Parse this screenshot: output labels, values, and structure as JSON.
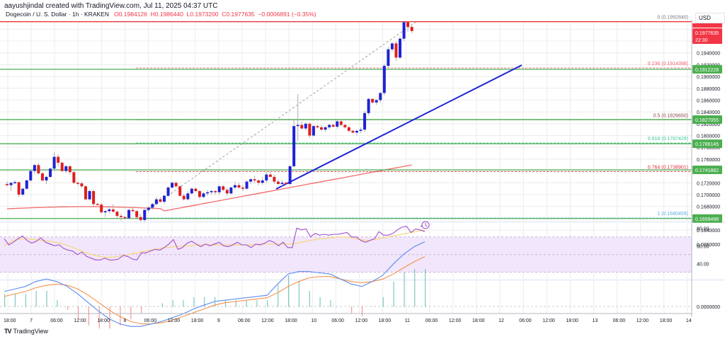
{
  "header": {
    "credit": "aayushjindal created with TradingView.com, Jul 11, 2025 04:37 UTC",
    "symbol": "Dogecoin / U. S. Dollar · 1h · KRAKEN",
    "open": "O0.1984126",
    "high": "H0.1986440",
    "low": "L0.1973200",
    "close": "C0.1977635",
    "change": "−0.0006891 (−0.35%)"
  },
  "currency_button": "USD",
  "branding": {
    "logo": "TV",
    "name": "TradingView"
  },
  "colors": {
    "up": "#1e22d4",
    "down": "#e01e1e",
    "fib_line": "#4caf50",
    "trendline": "#1e22d4",
    "ma": "#f05050",
    "rsi": "#a050c8",
    "rsi_ma": "#f5d77a",
    "rsi_band": "#f1e6fb",
    "macd": "#5b8cf0",
    "signal": "#f5924a",
    "price_tag": "#f23645",
    "level_tag": "#4caf50"
  },
  "chart_data": {
    "type": "candlestick",
    "title": "Dogecoin / U. S. Dollar · 1h · KRAKEN",
    "price_axis": {
      "ticks": [
        "0.1960000",
        "0.1940000",
        "0.1920000",
        "0.1900000",
        "0.1880000",
        "0.1860000",
        "0.1840000",
        "0.1820000",
        "0.1800000",
        "0.1780000",
        "0.1760000",
        "0.1720000",
        "0.1700000",
        "0.1680000",
        "0.1640000"
      ],
      "range": [
        0.163,
        0.2002
      ]
    },
    "time_axis": [
      "18:00",
      "7",
      "06:00",
      "12:00",
      "18:00",
      "8",
      "06:00",
      "12:00",
      "18:00",
      "9",
      "06:00",
      "12:00",
      "18:00",
      "10",
      "06:00",
      "12:00",
      "18:00",
      "11",
      "06:00",
      "12:00",
      "18:00",
      "12",
      "06:00",
      "12:00",
      "18:00",
      "13",
      "06:00",
      "12:00",
      "18:00",
      "14"
    ],
    "last_price": {
      "value": "0.1977635",
      "countdown": "22:30"
    },
    "level_tags": [
      "0.1912228",
      "0.1827055",
      "0.1786145",
      "0.1741882",
      "0.1659498"
    ],
    "fibonacci": [
      {
        "ratio": "0",
        "price": "0.1992840",
        "label": "0 (0.1992840)",
        "color": "#787b86"
      },
      {
        "ratio": "0.236",
        "price": "0.1914398",
        "label": "0.236 (0.1914398)",
        "color": "#f06070"
      },
      {
        "ratio": "0.5",
        "price": "0.1826650",
        "label": "0.5 (0.1826650)",
        "color": "#8a4a4a"
      },
      {
        "ratio": "0.618",
        "price": "0.1787429",
        "label": "0.618 (0.1787429)",
        "color": "#3ec99a"
      },
      {
        "ratio": "0.764",
        "price": "0.1738901",
        "label": "0.764 (0.1738901)",
        "color": "#e0303a"
      },
      {
        "ratio": "1",
        "price": "0.1660459",
        "label": "1 (0.1660459)",
        "color": "#5aaee0"
      }
    ],
    "horizontal_lines": [
      0.1912228,
      0.1827055,
      0.1786145,
      0.1741882,
      0.1659498
    ],
    "trendline": {
      "from": [
        390,
        267
      ],
      "to": [
        737,
        92
      ]
    },
    "candles": [
      [
        0.1718,
        0.1722,
        0.1714,
        0.1716
      ],
      [
        0.1716,
        0.172,
        0.1706,
        0.172
      ],
      [
        0.172,
        0.1724,
        0.1718,
        0.1721
      ],
      [
        0.1721,
        0.1722,
        0.1696,
        0.17
      ],
      [
        0.17,
        0.1712,
        0.1698,
        0.171
      ],
      [
        0.171,
        0.1726,
        0.1708,
        0.1724
      ],
      [
        0.1724,
        0.1742,
        0.1722,
        0.174
      ],
      [
        0.174,
        0.1752,
        0.1735,
        0.175
      ],
      [
        0.175,
        0.1754,
        0.1734,
        0.1736
      ],
      [
        0.1736,
        0.1738,
        0.1722,
        0.1724
      ],
      [
        0.1724,
        0.1732,
        0.1718,
        0.173
      ],
      [
        0.173,
        0.1746,
        0.1728,
        0.1744
      ],
      [
        0.1744,
        0.1772,
        0.174,
        0.1764
      ],
      [
        0.1764,
        0.1768,
        0.1748,
        0.1754
      ],
      [
        0.1754,
        0.1756,
        0.1738,
        0.174
      ],
      [
        0.174,
        0.175,
        0.1736,
        0.1748
      ],
      [
        0.1748,
        0.175,
        0.1734,
        0.1738
      ],
      [
        0.1738,
        0.174,
        0.1718,
        0.172
      ],
      [
        0.172,
        0.1722,
        0.1716,
        0.1719
      ],
      [
        0.1719,
        0.1722,
        0.1712,
        0.1714
      ],
      [
        0.1714,
        0.1716,
        0.169,
        0.1692
      ],
      [
        0.1692,
        0.1708,
        0.169,
        0.1706
      ],
      [
        0.1706,
        0.1708,
        0.168,
        0.1684
      ],
      [
        0.1684,
        0.1686,
        0.1682,
        0.1683
      ],
      [
        0.1683,
        0.1686,
        0.1668,
        0.167
      ],
      [
        0.167,
        0.1674,
        0.1662,
        0.1672
      ],
      [
        0.1672,
        0.168,
        0.1668,
        0.1675
      ],
      [
        0.1675,
        0.1684,
        0.167,
        0.1671
      ],
      [
        0.1671,
        0.1673,
        0.166,
        0.1664
      ],
      [
        0.1664,
        0.1668,
        0.1656,
        0.1662
      ],
      [
        0.1662,
        0.1664,
        0.1658,
        0.166
      ],
      [
        0.166,
        0.1676,
        0.1658,
        0.1674
      ],
      [
        0.1674,
        0.1678,
        0.167,
        0.1672
      ],
      [
        0.1672,
        0.1674,
        0.166,
        0.1662
      ],
      [
        0.1662,
        0.1664,
        0.1654,
        0.1657
      ],
      [
        0.1657,
        0.1676,
        0.1654,
        0.1674
      ],
      [
        0.1674,
        0.168,
        0.167,
        0.1678
      ],
      [
        0.1678,
        0.1686,
        0.1674,
        0.1684
      ],
      [
        0.1684,
        0.1696,
        0.1682,
        0.1692
      ],
      [
        0.1692,
        0.1696,
        0.1686,
        0.1688
      ],
      [
        0.1688,
        0.17,
        0.1684,
        0.1698
      ],
      [
        0.1698,
        0.1714,
        0.1696,
        0.1712
      ],
      [
        0.1712,
        0.1722,
        0.171,
        0.172
      ],
      [
        0.172,
        0.1722,
        0.1712,
        0.1714
      ],
      [
        0.1714,
        0.1716,
        0.1696,
        0.1698
      ],
      [
        0.1698,
        0.1702,
        0.169,
        0.1692
      ],
      [
        0.1692,
        0.1706,
        0.169,
        0.1702
      ],
      [
        0.1702,
        0.1712,
        0.17,
        0.171
      ],
      [
        0.171,
        0.1712,
        0.1704,
        0.1706
      ],
      [
        0.1706,
        0.1708,
        0.1692,
        0.1696
      ],
      [
        0.1696,
        0.1704,
        0.1694,
        0.1702
      ],
      [
        0.1702,
        0.1708,
        0.1698,
        0.1704
      ],
      [
        0.1704,
        0.1708,
        0.17,
        0.1706
      ],
      [
        0.1706,
        0.1708,
        0.17,
        0.1704
      ],
      [
        0.1704,
        0.1716,
        0.17,
        0.1714
      ],
      [
        0.1714,
        0.1716,
        0.1706,
        0.1708
      ],
      [
        0.1708,
        0.1712,
        0.1698,
        0.1702
      ],
      [
        0.1702,
        0.1714,
        0.17,
        0.1712
      ],
      [
        0.1712,
        0.1722,
        0.1708,
        0.1716
      ],
      [
        0.1716,
        0.172,
        0.171,
        0.1712
      ],
      [
        0.1712,
        0.1716,
        0.1706,
        0.171
      ],
      [
        0.171,
        0.1724,
        0.1708,
        0.1722
      ],
      [
        0.1722,
        0.1728,
        0.1718,
        0.1726
      ],
      [
        0.1726,
        0.1732,
        0.172,
        0.1724
      ],
      [
        0.1724,
        0.1726,
        0.1716,
        0.172
      ],
      [
        0.172,
        0.173,
        0.1716,
        0.1724
      ],
      [
        0.1724,
        0.1738,
        0.172,
        0.1734
      ],
      [
        0.1734,
        0.174,
        0.173,
        0.173
      ],
      [
        0.173,
        0.1734,
        0.1718,
        0.1722
      ],
      [
        0.1722,
        0.1726,
        0.1716,
        0.1718
      ],
      [
        0.1718,
        0.1724,
        0.1714,
        0.172
      ],
      [
        0.172,
        0.1722,
        0.1716,
        0.1718
      ],
      [
        0.1718,
        0.175,
        0.1716,
        0.1748
      ],
      [
        0.1748,
        0.1828,
        0.1746,
        0.1816
      ],
      [
        0.1816,
        0.187,
        0.179,
        0.1818
      ],
      [
        0.1818,
        0.1824,
        0.181,
        0.1812
      ],
      [
        0.1812,
        0.1822,
        0.1808,
        0.182
      ],
      [
        0.182,
        0.1822,
        0.1796,
        0.18
      ],
      [
        0.18,
        0.1818,
        0.1798,
        0.1816
      ],
      [
        0.1816,
        0.1818,
        0.1812,
        0.1814
      ],
      [
        0.1814,
        0.1818,
        0.1808,
        0.181
      ],
      [
        0.181,
        0.1816,
        0.1806,
        0.1814
      ],
      [
        0.1814,
        0.182,
        0.181,
        0.1818
      ],
      [
        0.1818,
        0.182,
        0.1814,
        0.1815
      ],
      [
        0.1815,
        0.1826,
        0.1812,
        0.1824
      ],
      [
        0.1824,
        0.1826,
        0.1816,
        0.1818
      ],
      [
        0.1818,
        0.182,
        0.1812,
        0.1814
      ],
      [
        0.1814,
        0.1816,
        0.1806,
        0.1808
      ],
      [
        0.1808,
        0.181,
        0.1804,
        0.1805
      ],
      [
        0.1805,
        0.181,
        0.18,
        0.1808
      ],
      [
        0.1808,
        0.1814,
        0.1804,
        0.181
      ],
      [
        0.181,
        0.1842,
        0.1806,
        0.1838
      ],
      [
        0.1838,
        0.1864,
        0.1834,
        0.1862
      ],
      [
        0.1862,
        0.1864,
        0.1854,
        0.1856
      ],
      [
        0.1856,
        0.1862,
        0.1852,
        0.186
      ],
      [
        0.186,
        0.1874,
        0.1856,
        0.1872
      ],
      [
        0.1872,
        0.1922,
        0.1868,
        0.1918
      ],
      [
        0.1918,
        0.195,
        0.1914,
        0.1946
      ],
      [
        0.1946,
        0.1958,
        0.1942,
        0.1956
      ],
      [
        0.1956,
        0.196,
        0.1926,
        0.1932
      ],
      [
        0.1932,
        0.1968,
        0.193,
        0.1964
      ],
      [
        0.1964,
        0.1994,
        0.196,
        0.1992
      ],
      [
        0.1992,
        0.1994,
        0.1976,
        0.1984
      ],
      [
        0.1984,
        0.1986,
        0.1973,
        0.1977
      ]
    ],
    "rsi": {
      "axis": [
        "80.00",
        "60.00",
        "40.00"
      ],
      "band": [
        70,
        30
      ],
      "values": [
        68,
        61,
        64,
        68,
        71,
        66,
        63,
        65,
        69,
        64,
        62,
        60,
        61,
        57,
        55,
        54,
        50,
        53,
        48,
        46,
        44,
        44,
        46,
        44,
        44,
        45,
        49,
        48,
        45,
        44,
        52,
        52,
        54,
        56,
        55,
        58,
        62,
        67,
        56,
        58,
        63,
        65,
        62,
        59,
        62,
        60,
        62,
        64,
        60,
        59,
        61,
        64,
        61,
        61,
        58,
        62,
        61,
        63,
        66,
        64,
        60,
        64,
        58,
        58,
        80,
        78,
        79,
        70,
        74,
        72,
        73,
        72,
        73,
        73,
        74,
        75,
        70,
        70,
        66,
        64,
        66,
        68,
        76,
        72,
        72,
        74,
        78,
        81,
        82,
        75,
        79,
        78,
        76
      ],
      "ma_values": [
        60,
        63,
        66,
        67,
        68,
        68,
        67,
        67,
        66,
        66,
        65,
        64,
        63,
        62,
        60,
        58,
        56,
        54,
        52,
        50,
        49,
        48,
        47,
        47,
        47,
        48,
        49,
        50,
        51,
        52,
        53,
        54,
        55,
        56,
        57,
        58,
        58,
        59,
        59,
        60,
        60,
        60,
        61,
        61,
        61,
        61,
        61,
        61,
        61,
        61,
        61,
        61,
        61,
        61,
        61,
        61,
        62,
        62,
        62,
        62,
        62,
        62,
        62,
        62,
        63,
        64,
        65,
        66,
        67,
        68,
        68,
        69,
        69,
        70,
        70,
        70,
        69,
        68,
        67,
        66,
        66,
        67,
        68,
        69,
        70,
        71,
        72,
        73,
        74,
        75,
        76,
        77,
        78
      ]
    },
    "macd": {
      "axis": [
        "0.0050000",
        "0.0000000"
      ],
      "macd_values": [
        0.0012,
        0.0014,
        0.0016,
        0.002,
        0.0022,
        0.002,
        0.0016,
        0.001,
        0.0003,
        -0.0004,
        -0.001,
        -0.0014,
        -0.0016,
        -0.0016,
        -0.0014,
        -0.0012,
        -0.0009,
        -0.0006,
        -0.0002,
        0.0001,
        0.0004,
        0.0005,
        0.0006,
        0.0007,
        0.0008,
        0.0009,
        0.0018,
        0.0026,
        0.0028,
        0.0028,
        0.0027,
        0.0026,
        0.0022,
        0.0018,
        0.0016,
        0.002,
        0.0025,
        0.0034,
        0.0042,
        0.0048,
        0.0052
      ],
      "signal_values": [
        0.0008,
        0.001,
        0.0012,
        0.0015,
        0.0017,
        0.0018,
        0.0017,
        0.0014,
        0.0009,
        0.0003,
        -0.0003,
        -0.0008,
        -0.0012,
        -0.0014,
        -0.0014,
        -0.0013,
        -0.0011,
        -0.0008,
        -0.0005,
        -0.0002,
        0.0001,
        0.0003,
        0.0004,
        0.0005,
        0.0006,
        0.0007,
        0.0011,
        0.0016,
        0.002,
        0.0023,
        0.0024,
        0.0024,
        0.0022,
        0.002,
        0.0019,
        0.002,
        0.0022,
        0.0026,
        0.0031,
        0.0036,
        0.004
      ]
    }
  }
}
